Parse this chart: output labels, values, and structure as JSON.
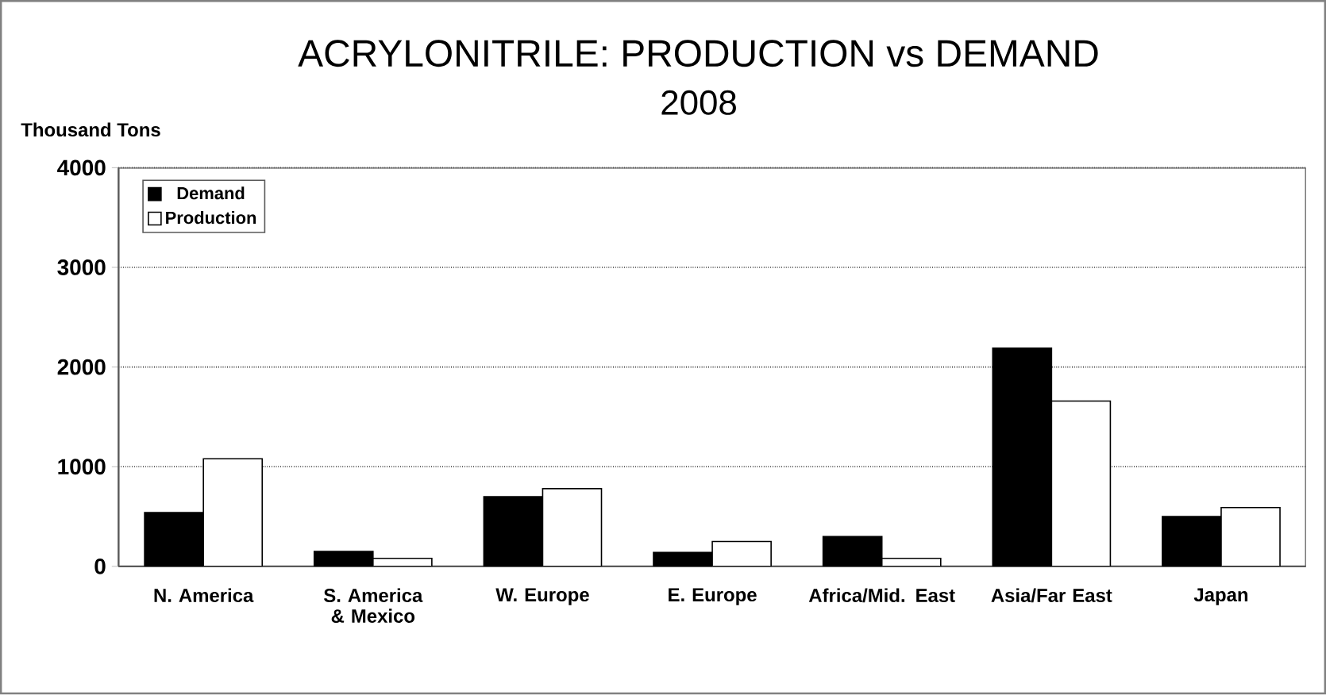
{
  "chart_data": {
    "type": "bar",
    "title": "ACRYLONITRILE: PRODUCTION vs DEMAND",
    "subtitle": "2008",
    "ylabel": "Thousand Tons",
    "categories": [
      "N. America",
      "S. America & Mexico",
      "W. Europe",
      "E. Europe",
      "Africa/Mid. East",
      "Asia/Far East",
      "Japan"
    ],
    "series": [
      {
        "name": "Demand",
        "color": "#000000",
        "values": [
          540,
          150,
          700,
          140,
          300,
          2190,
          500
        ]
      },
      {
        "name": "Production",
        "color": "#ffffff",
        "values": [
          1080,
          80,
          780,
          250,
          80,
          1660,
          590
        ]
      }
    ],
    "ylim": [
      0,
      4000
    ],
    "yticks": [
      0,
      1000,
      2000,
      3000,
      4000
    ],
    "grid": "y",
    "legend": "top left"
  }
}
